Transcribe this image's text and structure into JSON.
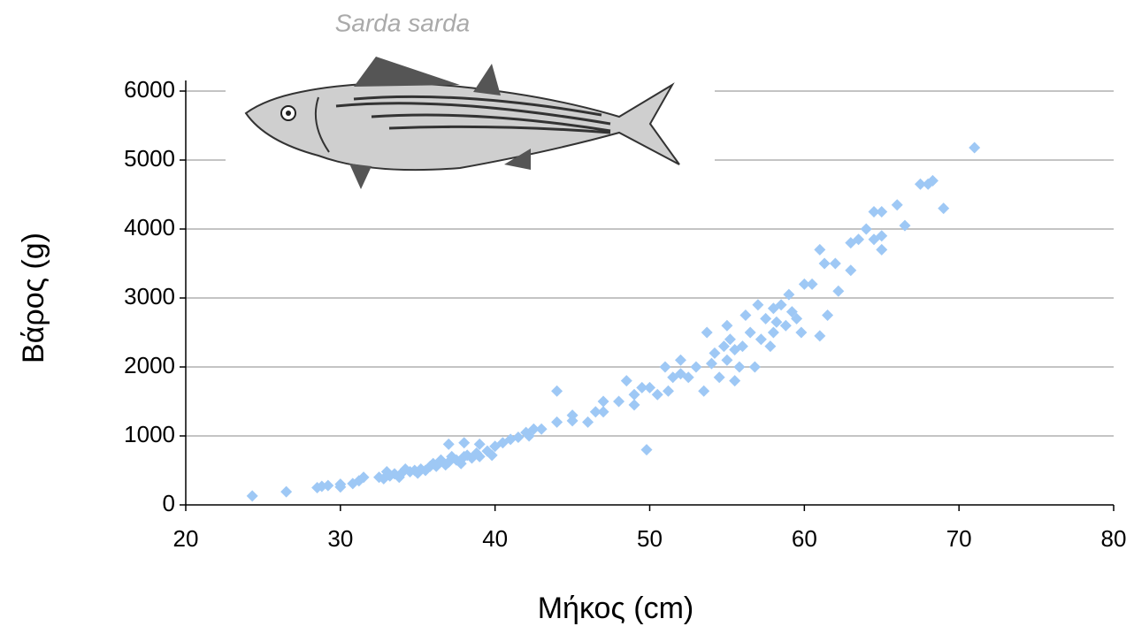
{
  "chart_data": {
    "type": "scatter",
    "title": "Sarda sarda",
    "xlabel": "Μήκος (cm)",
    "ylabel": "Βάρος (g)",
    "xlim": [
      20,
      80
    ],
    "xticks": [
      20,
      30,
      40,
      50,
      60,
      70,
      80
    ],
    "ylim": [
      0,
      6000
    ],
    "yticks": [
      0,
      1000,
      2000,
      3000,
      4000,
      5000,
      6000
    ],
    "grid": true,
    "series": [
      {
        "color": "#9ec8f5",
        "x": [
          24.3,
          26.5,
          28.5,
          28.8,
          29.2,
          30,
          30,
          30.8,
          31.2,
          31.5,
          32.5,
          32.8,
          33,
          33.2,
          33.5,
          33.8,
          34,
          34.2,
          34.5,
          34.8,
          35,
          35.2,
          35.5,
          35.8,
          36,
          36.2,
          36.5,
          36.8,
          37,
          37,
          37.2,
          37.5,
          37.8,
          38,
          38,
          38.2,
          38.5,
          38.8,
          39,
          39,
          39.5,
          39.8,
          40,
          40.5,
          41,
          41.5,
          42,
          42.2,
          42.5,
          43,
          44,
          44,
          45,
          45,
          46,
          46.5,
          47,
          47,
          48,
          48.5,
          49,
          49,
          49.5,
          49.8,
          50,
          50.5,
          51,
          51.2,
          51.5,
          52,
          52,
          52.5,
          53,
          53.5,
          53.7,
          54,
          54.2,
          54.5,
          54.8,
          55,
          55,
          55.2,
          55.5,
          55.5,
          55.8,
          56,
          56.2,
          56.5,
          56.8,
          57,
          57.2,
          57.5,
          57.8,
          58,
          58,
          58.2,
          58.5,
          58.8,
          59,
          59.2,
          59.5,
          59.8,
          60,
          60.5,
          61,
          61,
          61.3,
          61.5,
          62,
          62.2,
          63,
          63,
          63.5,
          64,
          64.5,
          64.5,
          65,
          65,
          65,
          66,
          66.5,
          67.5,
          68,
          68.3,
          69,
          71
        ],
        "values": [
          130,
          190,
          250,
          270,
          280,
          300,
          260,
          310,
          350,
          400,
          400,
          380,
          480,
          420,
          450,
          400,
          470,
          520,
          480,
          500,
          460,
          520,
          500,
          560,
          600,
          560,
          650,
          580,
          880,
          620,
          700,
          650,
          600,
          900,
          700,
          720,
          680,
          750,
          880,
          700,
          780,
          720,
          850,
          900,
          950,
          980,
          1050,
          1000,
          1100,
          1100,
          1650,
          1200,
          1300,
          1220,
          1200,
          1350,
          1500,
          1350,
          1500,
          1800,
          1600,
          1450,
          1700,
          800,
          1700,
          1600,
          2000,
          1650,
          1850,
          2100,
          1900,
          1850,
          2000,
          1650,
          2500,
          2050,
          2200,
          1850,
          2300,
          2600,
          2100,
          2400,
          1800,
          2250,
          2000,
          2300,
          2750,
          2500,
          2000,
          2900,
          2400,
          2700,
          2300,
          2500,
          2850,
          2650,
          2900,
          2600,
          3050,
          2800,
          2700,
          2500,
          3200,
          3200,
          3700,
          2450,
          3500,
          2750,
          3500,
          3100,
          3800,
          3400,
          3850,
          4000,
          4250,
          3850,
          4250,
          3900,
          3700,
          4350,
          4050,
          4650,
          4650,
          4700,
          4300,
          5180
        ]
      }
    ]
  }
}
